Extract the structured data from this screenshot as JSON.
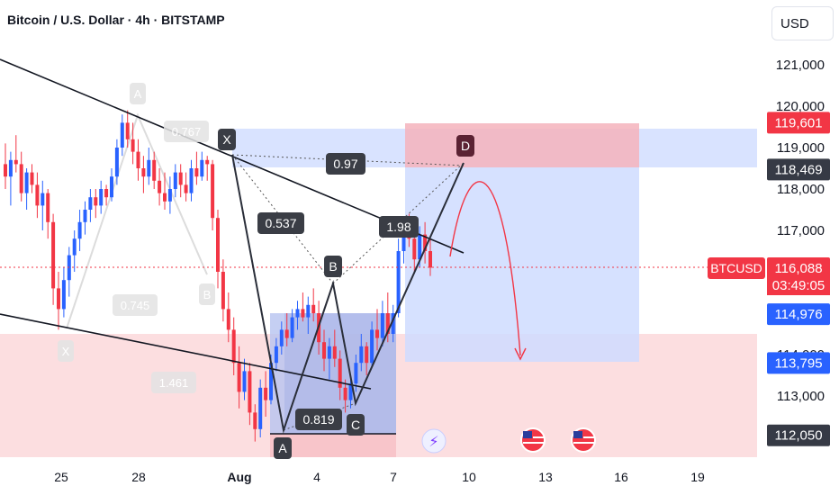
{
  "header": {
    "title": "Bitcoin / U.S. Dollar · 4h · BITSTAMP",
    "currency_button": "USD"
  },
  "colors": {
    "up": "#2962ff",
    "down": "#f23645",
    "zone_blue": "#cfdcff",
    "zone_red": "#fbd3d6",
    "price_line": "#f23645"
  },
  "chart_data": {
    "type": "candlestick",
    "title": "Bitcoin / U.S. Dollar · 4h · BITSTAMP",
    "symbol": "BTCUSD",
    "x_ticks": [
      "25",
      "28",
      "Aug",
      "4",
      "7",
      "10",
      "13",
      "16",
      "19"
    ],
    "y_ticks": [
      "121,000",
      "120,000",
      "119,000",
      "118,000",
      "117,000",
      "114,000",
      "113,000"
    ],
    "ylim": [
      111500,
      122000
    ],
    "price_labels": [
      {
        "text": "119,601",
        "value": 119601,
        "style": "red"
      },
      {
        "text": "118,469",
        "value": 118469,
        "style": "dark"
      },
      {
        "text": "116,088",
        "value": 116088,
        "style": "red"
      },
      {
        "text": "03:49:05",
        "style": "red-sub"
      },
      {
        "text": "114,976",
        "value": 114976,
        "style": "blue"
      },
      {
        "text": "113,795",
        "value": 113795,
        "style": "blue"
      },
      {
        "text": "112,050",
        "value": 112050,
        "style": "dark"
      }
    ],
    "symbol_tag": "BTCUSD",
    "last_price": 116088,
    "countdown": "03:49:05",
    "pattern_points": [
      "X",
      "A",
      "B",
      "C",
      "D"
    ],
    "ratios": [
      "0.537",
      "0.819",
      "1.98",
      "0.97"
    ],
    "ghost_pattern": {
      "points": [
        "X",
        "A",
        "B"
      ],
      "ratios": [
        "0.767",
        "0.745",
        "1.461"
      ]
    },
    "candles": [
      [
        118.6,
        119.1,
        118.0,
        118.3
      ],
      [
        118.3,
        118.9,
        117.6,
        118.7
      ],
      [
        118.7,
        119.3,
        118.4,
        118.6
      ],
      [
        118.6,
        118.9,
        117.7,
        117.9
      ],
      [
        117.9,
        118.5,
        117.5,
        118.4
      ],
      [
        118.4,
        118.6,
        117.9,
        118.1
      ],
      [
        118.1,
        118.4,
        117.3,
        117.6
      ],
      [
        117.6,
        118.2,
        117.0,
        117.9
      ],
      [
        117.9,
        118.0,
        116.8,
        117.2
      ],
      [
        117.2,
        117.4,
        115.2,
        115.6
      ],
      [
        115.6,
        116.0,
        114.6,
        115.1
      ],
      [
        115.1,
        116.1,
        114.9,
        115.8
      ],
      [
        115.8,
        116.6,
        115.4,
        116.4
      ],
      [
        116.4,
        117.0,
        116.0,
        116.8
      ],
      [
        116.8,
        117.5,
        116.5,
        117.2
      ],
      [
        117.2,
        117.7,
        116.9,
        117.5
      ],
      [
        117.5,
        118.0,
        117.2,
        117.8
      ],
      [
        117.8,
        118.0,
        117.3,
        117.6
      ],
      [
        117.6,
        118.2,
        117.4,
        118.0
      ],
      [
        118.0,
        118.1,
        117.6,
        117.8
      ],
      [
        117.8,
        118.5,
        117.7,
        118.3
      ],
      [
        118.3,
        119.2,
        118.1,
        119.0
      ],
      [
        119.0,
        119.8,
        118.8,
        119.6
      ],
      [
        119.6,
        119.9,
        119.0,
        119.2
      ],
      [
        119.2,
        119.6,
        118.6,
        118.9
      ],
      [
        118.9,
        119.2,
        118.2,
        118.5
      ],
      [
        118.5,
        118.8,
        117.9,
        118.3
      ],
      [
        118.3,
        119.0,
        118.1,
        118.7
      ],
      [
        118.7,
        118.9,
        118.0,
        118.2
      ],
      [
        118.2,
        118.5,
        117.6,
        117.9
      ],
      [
        117.9,
        118.4,
        117.5,
        117.7
      ],
      [
        117.7,
        118.3,
        117.4,
        118.0
      ],
      [
        118.0,
        118.6,
        117.8,
        118.4
      ],
      [
        118.4,
        118.6,
        117.8,
        118.1
      ],
      [
        118.1,
        118.4,
        117.7,
        117.9
      ],
      [
        117.9,
        118.7,
        117.7,
        118.5
      ],
      [
        118.5,
        118.9,
        118.1,
        118.3
      ],
      [
        118.3,
        118.9,
        118.2,
        118.7
      ],
      [
        118.7,
        118.8,
        118.2,
        118.6
      ],
      [
        118.6,
        118.7,
        117.0,
        117.3
      ],
      [
        117.3,
        117.5,
        115.6,
        116.0
      ],
      [
        116.0,
        116.3,
        114.8,
        115.1
      ],
      [
        115.1,
        115.5,
        114.3,
        114.6
      ],
      [
        114.6,
        114.9,
        113.5,
        113.8
      ],
      [
        113.8,
        114.2,
        112.7,
        113.1
      ],
      [
        113.1,
        113.9,
        112.9,
        113.6
      ],
      [
        113.6,
        113.8,
        112.3,
        112.6
      ],
      [
        112.6,
        112.8,
        111.9,
        112.2
      ],
      [
        112.2,
        113.4,
        112.0,
        113.2
      ],
      [
        113.2,
        113.6,
        112.5,
        112.9
      ],
      [
        112.9,
        114.0,
        112.8,
        113.8
      ],
      [
        113.8,
        114.4,
        113.6,
        114.2
      ],
      [
        114.2,
        114.8,
        114.0,
        114.6
      ],
      [
        114.6,
        115.0,
        114.2,
        114.4
      ],
      [
        114.4,
        115.1,
        114.3,
        114.9
      ],
      [
        114.9,
        115.3,
        114.6,
        115.1
      ],
      [
        115.1,
        115.5,
        114.8,
        114.9
      ],
      [
        114.9,
        115.4,
        114.5,
        115.2
      ],
      [
        115.2,
        115.6,
        114.8,
        115.0
      ],
      [
        115.0,
        115.3,
        114.0,
        114.3
      ],
      [
        114.3,
        114.6,
        113.6,
        113.9
      ],
      [
        113.9,
        114.4,
        113.4,
        114.2
      ],
      [
        114.2,
        114.6,
        113.7,
        113.9
      ],
      [
        113.9,
        114.1,
        112.9,
        113.2
      ],
      [
        113.2,
        113.4,
        112.6,
        112.9
      ],
      [
        112.9,
        113.5,
        112.7,
        113.3
      ],
      [
        113.3,
        114.0,
        113.1,
        113.8
      ],
      [
        113.8,
        114.5,
        113.6,
        114.2
      ],
      [
        114.2,
        114.3,
        113.5,
        113.8
      ],
      [
        113.8,
        114.8,
        113.7,
        114.6
      ],
      [
        114.6,
        115.1,
        114.1,
        114.4
      ],
      [
        114.4,
        115.3,
        114.2,
        115.0
      ],
      [
        115.0,
        115.5,
        114.3,
        114.5
      ],
      [
        114.5,
        115.2,
        114.3,
        115.0
      ],
      [
        115.0,
        116.8,
        114.9,
        116.5
      ],
      [
        116.5,
        117.3,
        116.2,
        117.1
      ],
      [
        117.1,
        117.4,
        116.6,
        116.8
      ],
      [
        116.8,
        117.3,
        116.0,
        116.3
      ],
      [
        116.3,
        117.1,
        116.1,
        116.9
      ],
      [
        116.9,
        117.2,
        116.2,
        116.5
      ],
      [
        116.5,
        116.8,
        115.9,
        116.1
      ]
    ]
  }
}
